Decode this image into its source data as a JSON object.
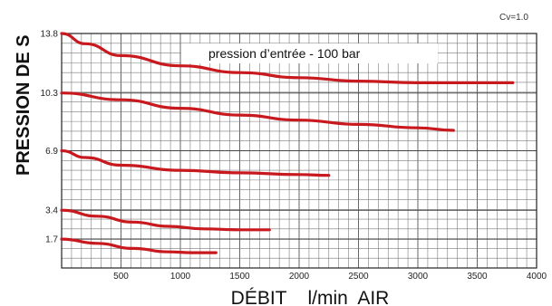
{
  "chart_data": {
    "type": "line",
    "xlabel": "DÉBIT    l/min  AIR",
    "ylabel": "PRESSION DE S",
    "annotation": "pression d’entrée - 100 bar",
    "cv_label": "Cv=1.0",
    "xlim": [
      0,
      4000
    ],
    "ylim": [
      0,
      13.8
    ],
    "xticks": [
      500,
      1000,
      1500,
      2000,
      2500,
      3000,
      3500,
      4000
    ],
    "yticks": [
      1.7,
      3.4,
      6.9,
      10.3,
      13.8
    ],
    "ytick_labels": [
      "1.7",
      "3.4",
      "6.9",
      "10.3",
      "13.8"
    ],
    "grid": true,
    "colors": {
      "series": "#c8191e",
      "grid": "#7a7a7a",
      "axis": "#222222"
    },
    "series": [
      {
        "x": [
          0,
          200,
          500,
          1000,
          1500,
          2000,
          2500,
          3000,
          3500,
          3800
        ],
        "y": [
          13.8,
          13.2,
          12.5,
          11.9,
          11.5,
          11.2,
          11.0,
          10.9,
          10.9,
          10.9
        ]
      },
      {
        "x": [
          0,
          500,
          1000,
          1500,
          2000,
          2500,
          3000,
          3300
        ],
        "y": [
          10.3,
          9.9,
          9.4,
          9.0,
          8.7,
          8.45,
          8.25,
          8.1
        ]
      },
      {
        "x": [
          0,
          200,
          500,
          1000,
          1500,
          2000,
          2250
        ],
        "y": [
          6.9,
          6.5,
          6.05,
          5.75,
          5.6,
          5.5,
          5.45
        ]
      },
      {
        "x": [
          0,
          300,
          600,
          900,
          1200,
          1500,
          1750
        ],
        "y": [
          3.4,
          3.05,
          2.7,
          2.45,
          2.3,
          2.25,
          2.25
        ]
      },
      {
        "x": [
          0,
          300,
          600,
          900,
          1100,
          1300
        ],
        "y": [
          1.7,
          1.45,
          1.15,
          0.95,
          0.9,
          0.9
        ]
      }
    ]
  }
}
